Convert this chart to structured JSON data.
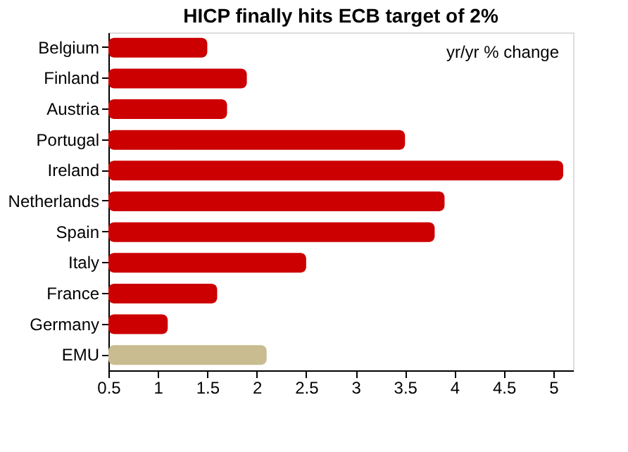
{
  "chart_data": {
    "type": "bar",
    "orientation": "horizontal",
    "title": "HICP finally hits ECB target of 2%",
    "categories": [
      "Belgium",
      "Finland",
      "Austria",
      "Portugal",
      "Ireland",
      "Netherlands",
      "Spain",
      "Italy",
      "France",
      "Germany",
      "EMU"
    ],
    "values": [
      1.5,
      1.9,
      1.7,
      3.5,
      5.1,
      3.9,
      3.8,
      2.5,
      1.6,
      1.1,
      2.1
    ],
    "colors": [
      "#cc0000",
      "#cc0000",
      "#cc0000",
      "#cc0000",
      "#cc0000",
      "#cc0000",
      "#cc0000",
      "#cc0000",
      "#cc0000",
      "#cc0000",
      "#c8bc90"
    ],
    "xlim": [
      0.5,
      5.2
    ],
    "xticks": [
      0.5,
      1,
      1.5,
      2,
      2.5,
      3,
      3.5,
      4,
      4.5,
      5
    ],
    "annotations": [
      "yr/yr % change"
    ],
    "grid": false
  }
}
